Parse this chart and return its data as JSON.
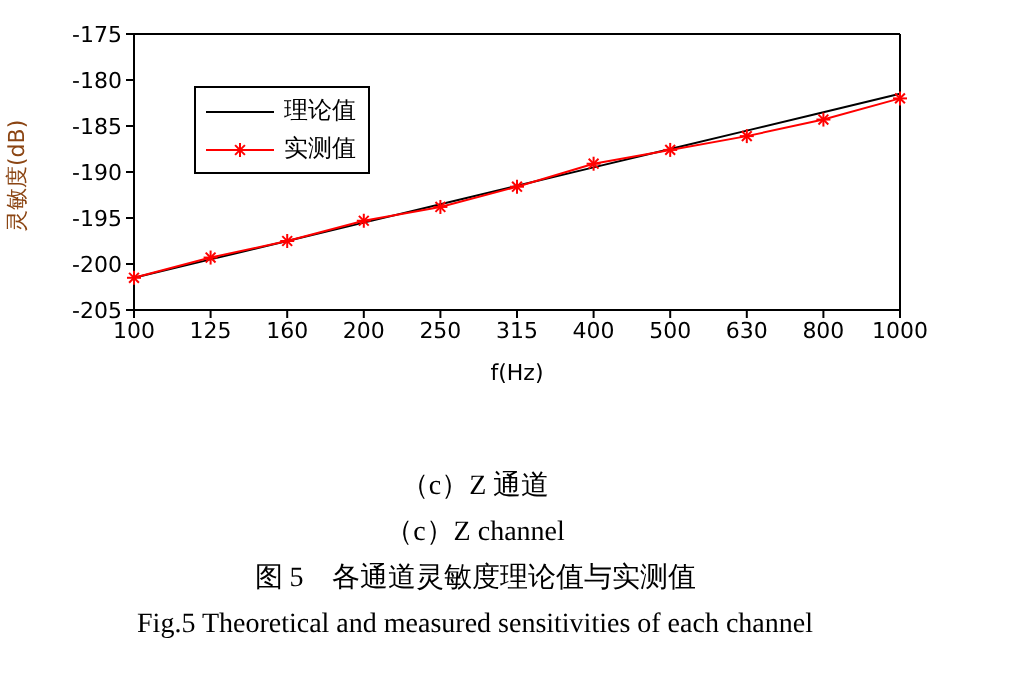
{
  "chart_data": {
    "type": "line",
    "xlabel": "f(Hz)",
    "ylabel": "灵敏度(dB)",
    "categories": [
      "100",
      "125",
      "160",
      "200",
      "250",
      "315",
      "400",
      "500",
      "630",
      "800",
      "1000"
    ],
    "series": [
      {
        "name": "理论值",
        "color": "#000000",
        "values": [
          -201.5,
          -199.5,
          -197.5,
          -195.5,
          -193.5,
          -191.5,
          -189.5,
          -187.5,
          -185.5,
          -183.5,
          -181.5
        ]
      },
      {
        "name": "实测值",
        "color": "#ff0000",
        "marker": "cross",
        "values": [
          -201.5,
          -199.3,
          -197.5,
          -195.3,
          -193.8,
          -191.6,
          -189.1,
          -187.6,
          -186.1,
          -184.3,
          -182.0
        ]
      }
    ],
    "ylim": [
      -205,
      -175
    ],
    "yticks": [
      -205,
      -200,
      -195,
      -190,
      -185,
      -180,
      -175
    ],
    "grid": false,
    "legend": "top left",
    "annotations": [
      "（c）Z 通道",
      "（c）Z channel",
      "图 5　各通道灵敏度理论值与实测值",
      "Fig.5 Theoretical and measured sensitivities of each channel"
    ]
  }
}
